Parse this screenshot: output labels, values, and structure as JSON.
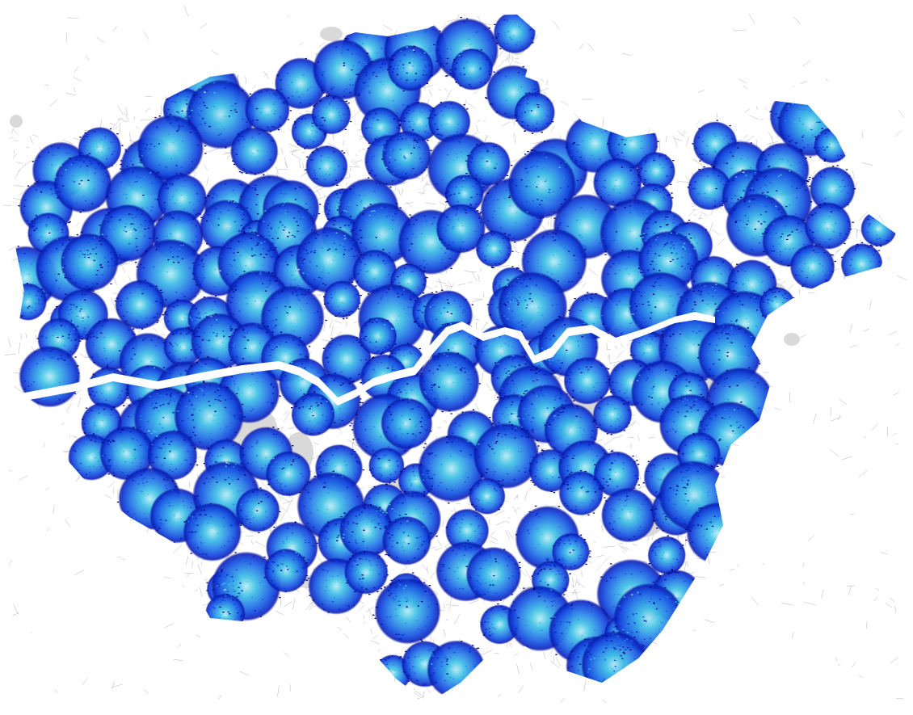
{
  "map": {
    "colors": {
      "background": "#ffffff",
      "street_network": "#9a9a9a",
      "parks": "#d9d9d9",
      "water": "#ffffff",
      "catchment_ramp": [
        "#00007a",
        "#0a1fb8",
        "#1a4fe0",
        "#2f86e8",
        "#44c2e6",
        "#b8ecf4"
      ]
    },
    "layers": [
      {
        "id": "street-network",
        "kind": "lines"
      },
      {
        "id": "green-space",
        "kind": "polygons"
      },
      {
        "id": "river-thames",
        "kind": "polygon"
      },
      {
        "id": "station-catchments",
        "kind": "points"
      }
    ]
  }
}
